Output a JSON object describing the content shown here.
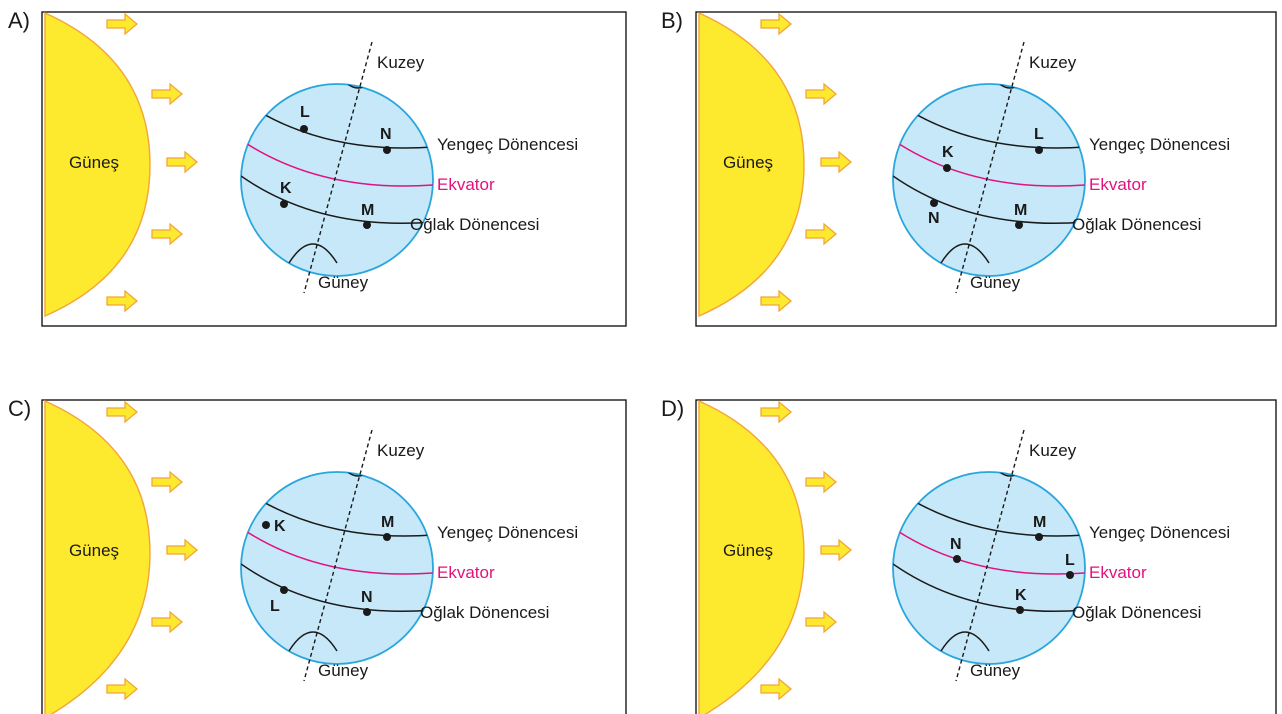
{
  "panels": [
    {
      "label": "A)",
      "sun_label": "Güneş",
      "north_label": "Kuzey",
      "south_label": "Güney",
      "lines": {
        "cancer": "Yengeç Dönencesi",
        "equator": "Ekvator",
        "capricorn": "Oğlak Dönencesi"
      },
      "points": [
        {
          "name": "L",
          "line": "cancer"
        },
        {
          "name": "N",
          "line": "cancer"
        },
        {
          "name": "K",
          "line": "capricorn"
        },
        {
          "name": "M",
          "line": "capricorn"
        }
      ]
    },
    {
      "label": "B)",
      "sun_label": "Güneş",
      "north_label": "Kuzey",
      "south_label": "Güney",
      "lines": {
        "cancer": "Yengeç Dönencesi",
        "equator": "Ekvator",
        "capricorn": "Oğlak Dönencesi"
      },
      "points": [
        {
          "name": "L",
          "line": "cancer"
        },
        {
          "name": "K",
          "line": "equator"
        },
        {
          "name": "N",
          "line": "capricorn"
        },
        {
          "name": "M",
          "line": "capricorn"
        }
      ]
    },
    {
      "label": "C)",
      "sun_label": "Güneş",
      "north_label": "Kuzey",
      "south_label": "Güney",
      "lines": {
        "cancer": "Yengeç Dönencesi",
        "equator": "Ekvator",
        "capricorn": "Oğlak Dönencesi"
      },
      "points": [
        {
          "name": "K",
          "line": "between cancer and equator"
        },
        {
          "name": "M",
          "line": "cancer"
        },
        {
          "name": "L",
          "line": "capricorn"
        },
        {
          "name": "N",
          "line": "capricorn"
        }
      ]
    },
    {
      "label": "D)",
      "sun_label": "Güneş",
      "north_label": "Kuzey",
      "south_label": "Güney",
      "lines": {
        "cancer": "Yengeç Dönencesi",
        "equator": "Ekvator",
        "capricorn": "Oğlak Dönencesi"
      },
      "points": [
        {
          "name": "M",
          "line": "cancer"
        },
        {
          "name": "N",
          "line": "equator"
        },
        {
          "name": "L",
          "line": "equator"
        },
        {
          "name": "K",
          "line": "capricorn"
        }
      ]
    }
  ],
  "colors": {
    "sun_fill": "#fde92e",
    "sun_stroke": "#f3a43a",
    "arrow_fill": "#fde92e",
    "arrow_stroke": "#f3a43a",
    "globe_fill": "#c6e8f8",
    "globe_stroke": "#29a6dd",
    "equator": "#e2127f",
    "lines": "#1a1a1a"
  }
}
